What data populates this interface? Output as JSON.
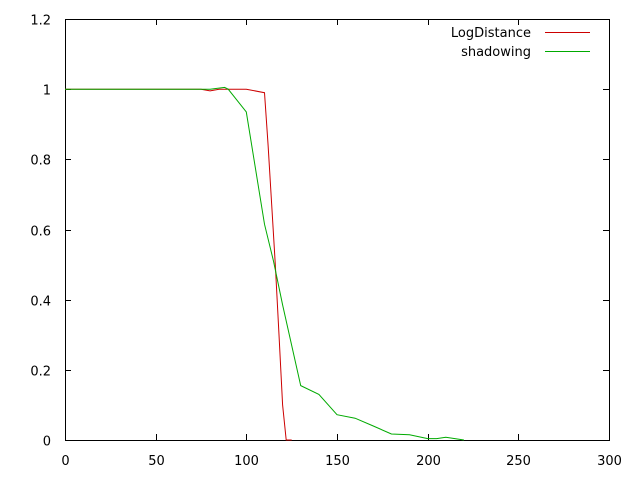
{
  "chart_data": {
    "type": "line",
    "title": "",
    "xlabel": "",
    "ylabel": "",
    "xlim": [
      0,
      300
    ],
    "ylim": [
      0,
      1.2
    ],
    "x_ticks": [
      "0",
      "50",
      "100",
      "150",
      "200",
      "250",
      "300"
    ],
    "y_ticks": [
      "0",
      "0.2",
      "0.4",
      "0.6",
      "0.8",
      "1",
      "1.2"
    ],
    "grid": false,
    "legend_position": "top-right",
    "series": [
      {
        "name": "LogDistance",
        "color": "#cc0000",
        "x": [
          0,
          75,
          80,
          85,
          90,
          100,
          110,
          112,
          114,
          116,
          118,
          120,
          122,
          125
        ],
        "y": [
          1,
          1,
          0.995,
          1,
          1,
          1,
          0.99,
          0.84,
          0.67,
          0.5,
          0.3,
          0.1,
          0,
          0
        ]
      },
      {
        "name": "shadowing",
        "color": "#00aa00",
        "x": [
          0,
          80,
          88,
          90,
          100,
          110,
          115,
          120,
          130,
          140,
          150,
          160,
          170,
          180,
          190,
          200,
          205,
          210,
          215,
          220
        ],
        "y": [
          1,
          1,
          1.005,
          1,
          0.935,
          0.615,
          0.51,
          0.385,
          0.155,
          0.13,
          0.072,
          0.062,
          0.04,
          0.017,
          0.015,
          0.004,
          0.004,
          0.008,
          0.004,
          0
        ]
      }
    ]
  }
}
